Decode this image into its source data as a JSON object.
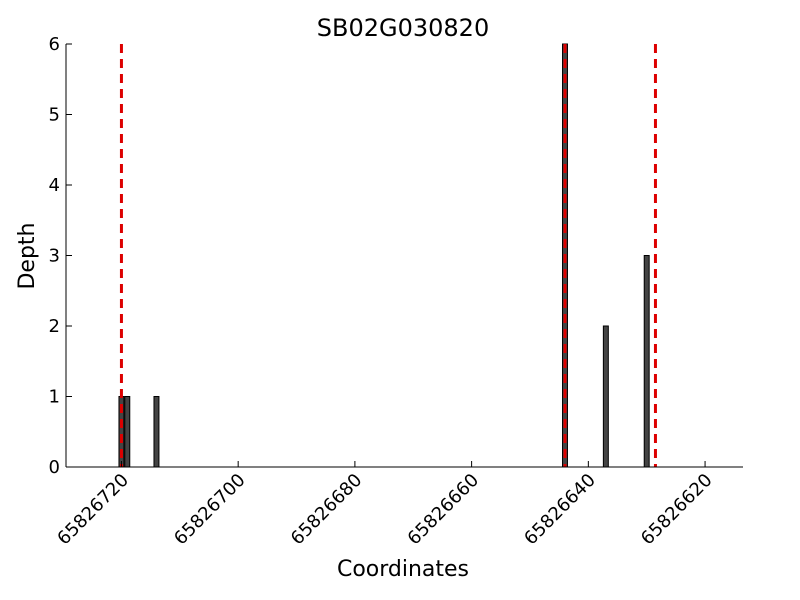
{
  "chart_data": {
    "type": "bar",
    "title": "SB02G030820",
    "xlabel": "Coordinates",
    "ylabel": "Depth",
    "x_axis_inverted": true,
    "xlim": [
      65826729.5,
      65826613.5
    ],
    "ylim": [
      0,
      6
    ],
    "x_ticks": [
      65826720,
      65826700,
      65826680,
      65826660,
      65826640,
      65826620
    ],
    "y_ticks": [
      0,
      1,
      2,
      3,
      4,
      5,
      6
    ],
    "grid": false,
    "legend": "none",
    "bars": [
      {
        "x": 65826720,
        "y": 1
      },
      {
        "x": 65826719,
        "y": 1
      },
      {
        "x": 65826714,
        "y": 1
      },
      {
        "x": 65826644,
        "y": 6
      },
      {
        "x": 65826637,
        "y": 2
      },
      {
        "x": 65826630,
        "y": 3
      }
    ],
    "bar_color": "#444444",
    "vlines": [
      {
        "x": 65826720,
        "color": "#dd0000",
        "style": "dashed"
      },
      {
        "x": 65826644,
        "color": "#dd0000",
        "style": "dashed"
      },
      {
        "x": 65826628.5,
        "color": "#dd0000",
        "style": "dashed"
      }
    ]
  }
}
